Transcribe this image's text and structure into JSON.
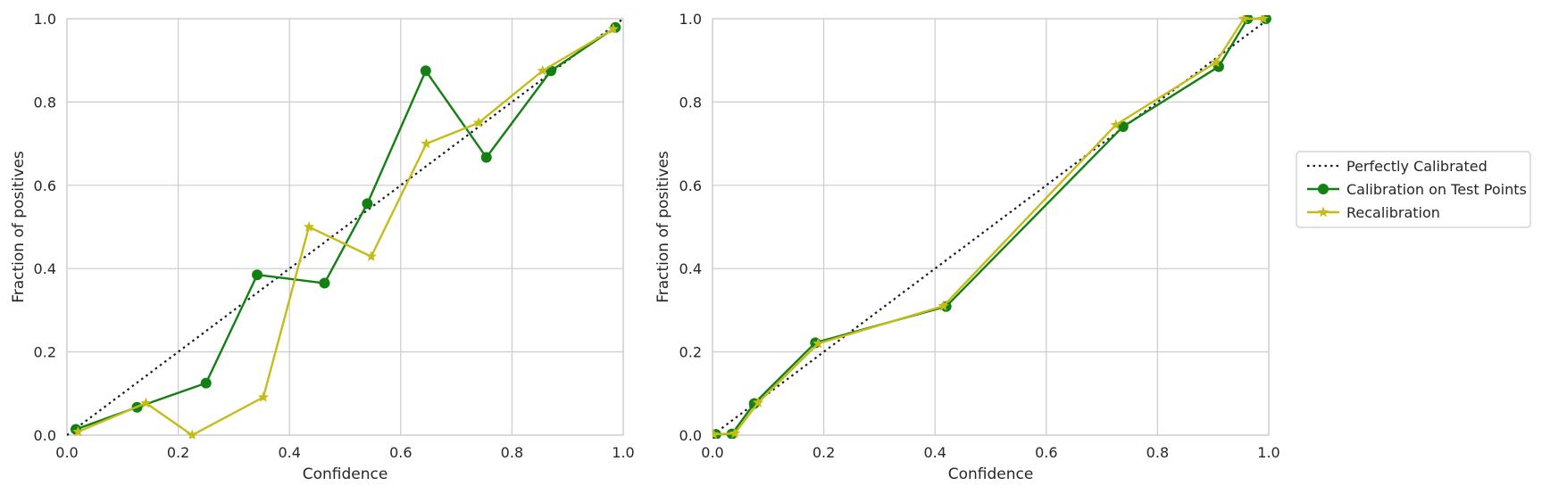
{
  "colors": {
    "reference": "#1a1a1a",
    "test": "#138013",
    "recal": "#c4bd18",
    "grid": "#cccccc",
    "frame": "#cccccc"
  },
  "legend": {
    "placement": "right",
    "entries": [
      {
        "label": "Perfectly Calibrated",
        "style": "dotted",
        "marker": "none",
        "color": "#1a1a1a"
      },
      {
        "label": "Calibration on Test Points",
        "style": "solid",
        "marker": "circle",
        "color": "#138013"
      },
      {
        "label": "Recalibration",
        "style": "solid",
        "marker": "star",
        "color": "#c4bd18"
      }
    ]
  },
  "chart_data": [
    {
      "type": "line",
      "xlabel": "Confidence",
      "ylabel": "Fraction of positives",
      "xlim": [
        0.0,
        1.0
      ],
      "ylim": [
        0.0,
        1.0
      ],
      "xticks": [
        "0.0",
        "0.2",
        "0.4",
        "0.6",
        "0.8",
        "1.0"
      ],
      "yticks": [
        "0.0",
        "0.2",
        "0.4",
        "0.6",
        "0.8",
        "1.0"
      ],
      "grid": true,
      "series": [
        {
          "name": "Perfectly Calibrated",
          "style": "dotted",
          "marker": "none",
          "color": "#1a1a1a",
          "x": [
            0.0,
            1.0
          ],
          "y": [
            0.0,
            1.0
          ]
        },
        {
          "name": "Calibration on Test Points",
          "style": "solid",
          "marker": "circle",
          "color": "#138013",
          "x": [
            0.016,
            0.126,
            0.25,
            0.342,
            0.463,
            0.54,
            0.645,
            0.754,
            0.87,
            0.986
          ],
          "y": [
            0.014,
            0.067,
            0.125,
            0.385,
            0.365,
            0.556,
            0.875,
            0.667,
            0.875,
            0.979
          ]
        },
        {
          "name": "Recalibration",
          "style": "solid",
          "marker": "star",
          "color": "#c4bd18",
          "x": [
            0.02,
            0.142,
            0.225,
            0.353,
            0.435,
            0.547,
            0.646,
            0.74,
            0.855,
            0.982
          ],
          "y": [
            0.008,
            0.077,
            0.0,
            0.091,
            0.5,
            0.429,
            0.7,
            0.75,
            0.875,
            0.975
          ]
        }
      ]
    },
    {
      "type": "line",
      "xlabel": "Confidence",
      "ylabel": "Fraction of positives",
      "xlim": [
        0.0,
        1.0
      ],
      "ylim": [
        0.0,
        1.0
      ],
      "xticks": [
        "0.0",
        "0.2",
        "0.4",
        "0.6",
        "0.8",
        "1.0"
      ],
      "yticks": [
        "0.0",
        "0.2",
        "0.4",
        "0.6",
        "0.8",
        "1.0"
      ],
      "grid": true,
      "series": [
        {
          "name": "Perfectly Calibrated",
          "style": "dotted",
          "marker": "none",
          "color": "#1a1a1a",
          "x": [
            0.0,
            1.0
          ],
          "y": [
            0.0,
            1.0
          ]
        },
        {
          "name": "Calibration on Test Points",
          "style": "solid",
          "marker": "circle",
          "color": "#138013",
          "x": [
            0.006,
            0.035,
            0.075,
            0.185,
            0.42,
            0.738,
            0.91,
            0.962,
            0.995
          ],
          "y": [
            0.002,
            0.003,
            0.076,
            0.222,
            0.309,
            0.741,
            0.885,
            1.0,
            1.0
          ]
        },
        {
          "name": "Recalibration",
          "style": "solid",
          "marker": "star",
          "color": "#c4bd18",
          "x": [
            0.002,
            0.04,
            0.082,
            0.19,
            0.415,
            0.725,
            0.905,
            0.955,
            0.99
          ],
          "y": [
            0.002,
            0.004,
            0.078,
            0.22,
            0.31,
            0.745,
            0.895,
            1.0,
            1.0
          ]
        }
      ]
    }
  ]
}
